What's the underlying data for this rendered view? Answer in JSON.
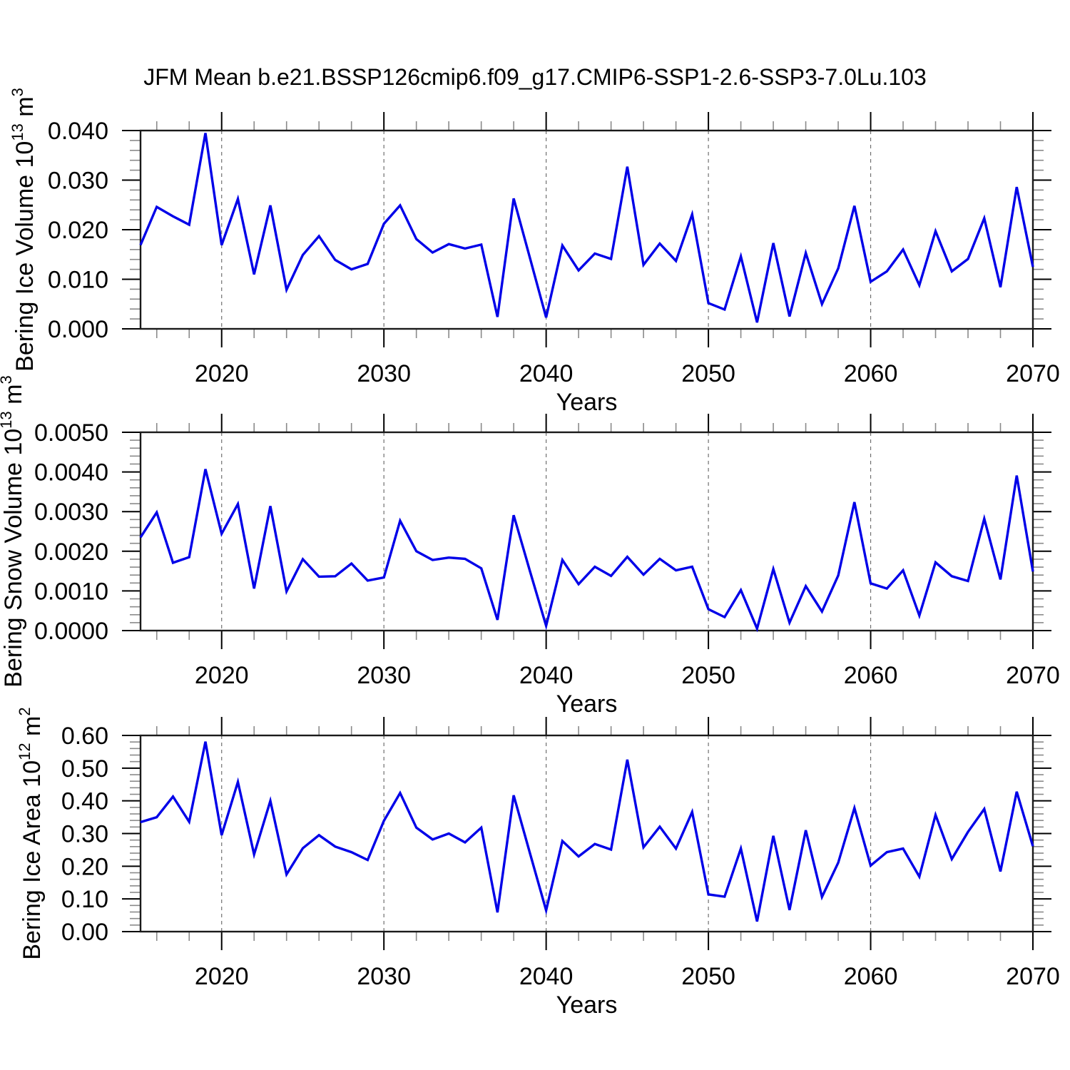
{
  "title": "JFM Mean b.e21.BSSP126cmip6.f09_g17.CMIP6-SSP1-2.6-SSP3-7.0Lu.103",
  "colors": {
    "line": "#0000e8",
    "grid": "#707070",
    "frame": "#1a1a1a",
    "major_tick": "#000000",
    "minor_tick": "#8a8a8a",
    "text": "#000000",
    "background": "#ffffff"
  },
  "x_axis": {
    "label": "Years",
    "range": [
      2015,
      2070
    ],
    "major_ticks": [
      2020,
      2030,
      2040,
      2050,
      2060,
      2070
    ],
    "major_tick_labels": [
      "2020",
      "2030",
      "2040",
      "2050",
      "2060",
      "2070"
    ],
    "minor_tick_step": 2,
    "gridline_years": [
      2020,
      2030,
      2040,
      2050,
      2060
    ]
  },
  "years": [
    2015,
    2016,
    2017,
    2018,
    2019,
    2020,
    2021,
    2022,
    2023,
    2024,
    2025,
    2026,
    2027,
    2028,
    2029,
    2030,
    2031,
    2032,
    2033,
    2034,
    2035,
    2036,
    2037,
    2038,
    2039,
    2040,
    2041,
    2042,
    2043,
    2044,
    2045,
    2046,
    2047,
    2048,
    2049,
    2050,
    2051,
    2052,
    2053,
    2054,
    2055,
    2056,
    2057,
    2058,
    2059,
    2060,
    2061,
    2062,
    2063,
    2064,
    2065,
    2066,
    2067,
    2068,
    2069,
    2070
  ],
  "chart_data": [
    {
      "type": "line",
      "name": "bering-ice-volume",
      "xlabel": "Years",
      "ylabel": {
        "prefix": "Bering Ice Volume 10",
        "power": "13",
        "unit": "m",
        "unit_power": "3"
      },
      "ylim": [
        0,
        0.04
      ],
      "yticks": {
        "values": [
          0.0,
          0.01,
          0.02,
          0.03,
          0.04
        ],
        "labels": [
          "0.000",
          "0.010",
          "0.020",
          "0.030",
          "0.040"
        ]
      },
      "minor_step": 0.002,
      "grid": "decade-dashed",
      "legend": "none",
      "values": [
        0.0169,
        0.0246,
        0.0227,
        0.021,
        0.0395,
        0.0169,
        0.0262,
        0.011,
        0.0249,
        0.0079,
        0.0149,
        0.0187,
        0.0139,
        0.012,
        0.0131,
        0.0212,
        0.0249,
        0.0181,
        0.0154,
        0.0171,
        0.0162,
        0.017,
        0.0024,
        0.0263,
        0.0143,
        0.0023,
        0.0168,
        0.0118,
        0.0152,
        0.0141,
        0.0327,
        0.0129,
        0.0172,
        0.0137,
        0.0231,
        0.0052,
        0.0039,
        0.0146,
        0.0013,
        0.0173,
        0.0025,
        0.0153,
        0.005,
        0.0122,
        0.0248,
        0.0095,
        0.0116,
        0.016,
        0.0088,
        0.0197,
        0.0116,
        0.0141,
        0.0223,
        0.0084,
        0.0286,
        0.0125
      ]
    },
    {
      "type": "line",
      "name": "bering-snow-volume",
      "xlabel": "Years",
      "ylabel": {
        "prefix": "Bering Snow Volume 10",
        "power": "13",
        "unit": "m",
        "unit_power": "3"
      },
      "ylim": [
        0,
        0.005
      ],
      "yticks": {
        "values": [
          0.0,
          0.001,
          0.002,
          0.003,
          0.004,
          0.005
        ],
        "labels": [
          "0.0000",
          "0.0010",
          "0.0020",
          "0.0030",
          "0.0040",
          "0.0050"
        ]
      },
      "minor_step": 0.0002,
      "grid": "decade-dashed",
      "legend": "none",
      "values": [
        0.00235,
        0.00298,
        0.00171,
        0.00185,
        0.00407,
        0.00244,
        0.00319,
        0.00106,
        0.00314,
        0.00099,
        0.0018,
        0.00136,
        0.00137,
        0.00169,
        0.00126,
        0.00134,
        0.00277,
        0.002,
        0.00178,
        0.00184,
        0.00181,
        0.00157,
        0.00027,
        0.00291,
        0.0015,
        0.00012,
        0.00178,
        0.00117,
        0.00161,
        0.00138,
        0.00186,
        0.00141,
        0.00181,
        0.00152,
        0.00161,
        0.00054,
        0.00034,
        0.00102,
        5e-05,
        0.00155,
        0.0002,
        0.00112,
        0.00048,
        0.00139,
        0.00324,
        0.00119,
        0.00106,
        0.00152,
        0.00038,
        0.00172,
        0.00137,
        0.00125,
        0.00282,
        0.00129,
        0.00391,
        0.00149
      ]
    },
    {
      "type": "line",
      "name": "bering-ice-area",
      "xlabel": "Years",
      "ylabel": {
        "prefix": "Bering Ice Area 10",
        "power": "12",
        "unit": "m",
        "unit_power": "2"
      },
      "ylim": [
        0,
        0.6
      ],
      "yticks": {
        "values": [
          0.0,
          0.1,
          0.2,
          0.3,
          0.4,
          0.5,
          0.6
        ],
        "labels": [
          "0.00",
          "0.10",
          "0.20",
          "0.30",
          "0.40",
          "0.50",
          "0.60"
        ]
      },
      "minor_step": 0.02,
      "grid": "decade-dashed",
      "legend": "none",
      "values": [
        0.335,
        0.35,
        0.413,
        0.336,
        0.581,
        0.295,
        0.458,
        0.236,
        0.4,
        0.175,
        0.255,
        0.295,
        0.26,
        0.243,
        0.219,
        0.339,
        0.424,
        0.318,
        0.282,
        0.3,
        0.273,
        0.318,
        0.059,
        0.417,
        0.24,
        0.065,
        0.277,
        0.23,
        0.268,
        0.251,
        0.526,
        0.258,
        0.321,
        0.254,
        0.366,
        0.114,
        0.107,
        0.254,
        0.031,
        0.293,
        0.066,
        0.31,
        0.106,
        0.211,
        0.378,
        0.202,
        0.243,
        0.254,
        0.168,
        0.357,
        0.222,
        0.305,
        0.375,
        0.184,
        0.428,
        0.261
      ]
    }
  ]
}
